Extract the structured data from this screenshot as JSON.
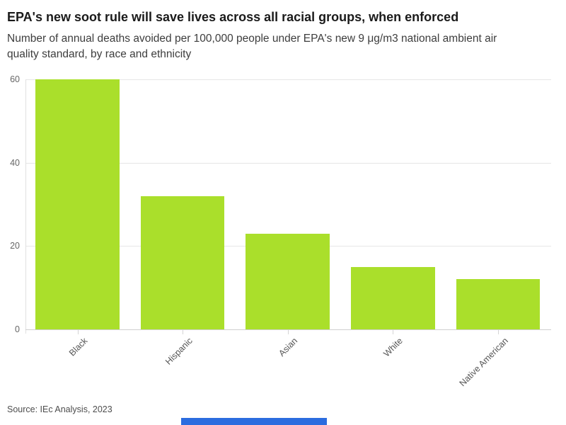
{
  "page": {
    "title": "EPA's new soot rule will save lives across all racial groups, when enforced",
    "subtitle": "Number of annual deaths avoided per 100,000 people under EPA's new 9 μg/m3 national ambient air quality standard, by race and ethnicity",
    "source": "Source: IEc Analysis, 2023"
  },
  "colors": {
    "bar_fill": "#aadf2b",
    "gridline": "#e6e6e6",
    "axis_line": "#e0e0e0",
    "baseline": "#cfcfcf",
    "tick_mark": "#d4d4d4",
    "tick_label": "#666666",
    "category_label": "#555555",
    "title_text": "#1a1a1a",
    "subtitle_text": "#3d3d3d",
    "source_text": "#4d4d4d",
    "bottom_bar": "#2b6cdf"
  },
  "chart_data": {
    "type": "bar",
    "title": "EPA's new soot rule will save lives across all racial groups, when enforced",
    "subtitle": "Number of annual deaths avoided per 100,000 people under EPA's new 9 μg/m3 national ambient air quality standard, by race and ethnicity",
    "categories": [
      "Black",
      "Hispanic",
      "Asian",
      "White",
      "Native American"
    ],
    "values": [
      60,
      32,
      23,
      15,
      12
    ],
    "xlabel": "",
    "ylabel": "",
    "ylim": [
      0,
      60
    ],
    "yticks": [
      0,
      20,
      40,
      60
    ],
    "grid": "horizontal",
    "legend_position": "none",
    "bar_color": "#aadf2b",
    "category_label_rotation_deg": -45,
    "source": "Source: IEc Analysis, 2023"
  }
}
